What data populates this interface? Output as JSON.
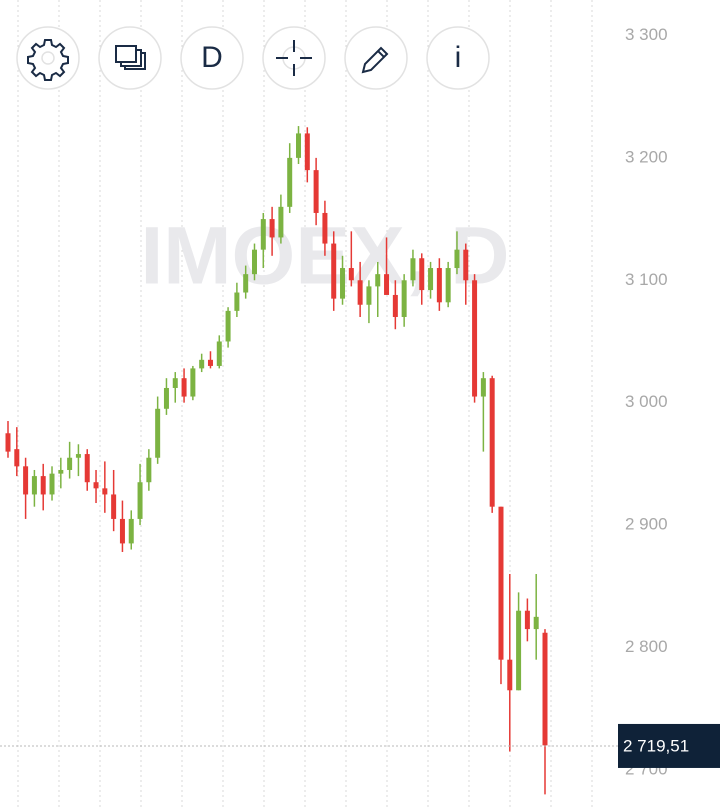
{
  "chart_data": {
    "type": "candlestick",
    "watermark": "IMOEX, D",
    "up_color": "#7cb342",
    "down_color": "#e53935",
    "open": [
      2975,
      2962,
      2948,
      2925,
      2940,
      2925,
      2942,
      2945,
      2955,
      2958,
      2935,
      2930,
      2925,
      2905,
      2885,
      2905,
      2935,
      2955,
      2995,
      3012,
      3020,
      3005,
      3028,
      3035,
      3030,
      3050,
      3075,
      3090,
      3105,
      3125,
      3150,
      3135,
      3160,
      3200,
      3220,
      3190,
      3155,
      3130,
      3085,
      3110,
      3100,
      3080,
      3095,
      3105,
      3088,
      3070,
      3100,
      3118,
      3092,
      3110,
      3082,
      3110,
      3125,
      3100,
      3005,
      3020,
      2915,
      2790,
      2765,
      2830,
      2815,
      2812
    ],
    "high": [
      2985,
      2980,
      2955,
      2945,
      2950,
      2948,
      2955,
      2968,
      2966,
      2962,
      2945,
      2952,
      2945,
      2920,
      2912,
      2950,
      2962,
      3005,
      3020,
      3025,
      3028,
      3030,
      3040,
      3042,
      3055,
      3078,
      3098,
      3112,
      3130,
      3155,
      3160,
      3170,
      3212,
      3226,
      3225,
      3200,
      3165,
      3140,
      3120,
      3140,
      3115,
      3100,
      3115,
      3135,
      3100,
      3105,
      3125,
      3122,
      3115,
      3118,
      3115,
      3140,
      3130,
      3105,
      3025,
      3022,
      2915,
      2860,
      2845,
      2840,
      2860,
      2815
    ],
    "low": [
      2955,
      2940,
      2905,
      2915,
      2912,
      2920,
      2930,
      2938,
      2940,
      2928,
      2918,
      2910,
      2895,
      2878,
      2880,
      2900,
      2928,
      2950,
      2990,
      3000,
      3000,
      3002,
      3025,
      3028,
      3028,
      3045,
      3070,
      3085,
      3100,
      3110,
      3120,
      3130,
      3155,
      3195,
      3180,
      3145,
      3120,
      3075,
      3080,
      3095,
      3070,
      3065,
      3070,
      3090,
      3060,
      3062,
      3095,
      3080,
      3085,
      3075,
      3078,
      3105,
      3080,
      3000,
      2960,
      2910,
      2770,
      2715,
      2765,
      2805,
      2790,
      2680
    ],
    "close": [
      2960,
      2948,
      2925,
      2940,
      2925,
      2942,
      2945,
      2955,
      2958,
      2935,
      2930,
      2925,
      2905,
      2885,
      2905,
      2935,
      2955,
      2995,
      3012,
      3020,
      3005,
      3028,
      3035,
      3030,
      3050,
      3075,
      3090,
      3105,
      3125,
      3150,
      3135,
      3160,
      3200,
      3220,
      3190,
      3155,
      3130,
      3085,
      3110,
      3100,
      3080,
      3095,
      3105,
      3088,
      3070,
      3100,
      3118,
      3092,
      3110,
      3082,
      3110,
      3125,
      3100,
      3005,
      3020,
      2915,
      2790,
      2765,
      2830,
      2815,
      2825,
      2720
    ],
    "last_value": 2719.51,
    "last_value_label": "2 719,51",
    "ylim": [
      2668,
      3329
    ],
    "yticks": [
      {
        "value": 2700,
        "label": "2 700"
      },
      {
        "value": 2800,
        "label": "2 800"
      },
      {
        "value": 2900,
        "label": "2 900"
      },
      {
        "value": 3000,
        "label": "3 000"
      },
      {
        "value": 3100,
        "label": "3 100"
      },
      {
        "value": 3200,
        "label": "3 200"
      },
      {
        "value": 3300,
        "label": "3 300"
      }
    ]
  },
  "toolbar": {
    "buttons": [
      "D",
      "i"
    ]
  }
}
